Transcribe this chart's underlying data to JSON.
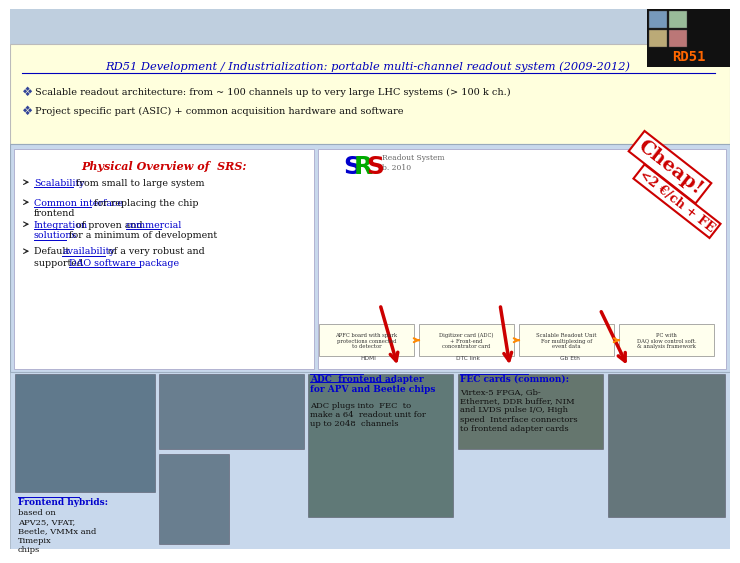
{
  "title": "RD51 Development / Industrialization: portable multi-channel readout system (2009-2012)",
  "title_color": "#0000BB",
  "bg_color": "#FFFFFF",
  "bullet1": "Scalable readout architecture: from ~ 100 channels up to very large LHC systems (> 100 k ch.)",
  "bullet2": "Project specific part (ASIC) + common acquisition hardware and software",
  "physical_overview_title": "Physical Overview of  SRS:",
  "physical_overview_color": "#CC0000",
  "bullets_left": [
    [
      "Scalability",
      " from small to large system"
    ],
    [
      "Common interface",
      " for replacing the chip\nfrontend"
    ],
    [
      "Integration",
      " of proven and ",
      "commercial\nsolutions",
      " for a minimum of development"
    ],
    [
      "Default ",
      "availability",
      " of a very robust and\nsupported ",
      "DAO software package"
    ]
  ],
  "cheap_text": "Cheap!",
  "cheap_subtext": "<2 €/ch + FE",
  "cheap_color": "#CC0000",
  "adc_title": "ADC  frontend adapter\nfor APV and Beetle chips",
  "adc_text": "ADC plugs into  FEC  to\nmake a 64  readout unit for\nup to 2048  channels",
  "fec_title": "FEC cards (common):",
  "fec_text": "Virtex-5 FPGA, Gb-\nEthernet, DDR buffer, NIM\nand LVDS pulse I/O, High\nspeed  Interface connectors\nto frontend adapter cards",
  "frontend_title": "Frontend hybrids:",
  "frontend_text": "based on\nAPV25, VFAT,\nBeetle, VMMx and\nTimepix\nchips",
  "header_bg": "#FFFFDD",
  "mid_bg": "#C8D8EC",
  "bottom_bg": "#C8D8EC",
  "logo_bg": "#111111",
  "logo_text_color": "#FF6600",
  "panel_bg": "#FFFFFF"
}
